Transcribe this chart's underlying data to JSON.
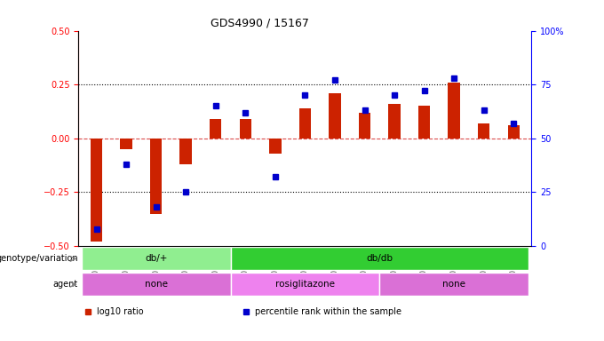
{
  "title": "GDS4990 / 15167",
  "samples": [
    "GSM904674",
    "GSM904675",
    "GSM904676",
    "GSM904677",
    "GSM904678",
    "GSM904684",
    "GSM904685",
    "GSM904686",
    "GSM904687",
    "GSM904688",
    "GSM904679",
    "GSM904680",
    "GSM904681",
    "GSM904682",
    "GSM904683"
  ],
  "log10_ratio": [
    -0.48,
    -0.05,
    -0.35,
    -0.12,
    0.09,
    0.09,
    -0.07,
    0.14,
    0.21,
    0.12,
    0.16,
    0.15,
    0.26,
    0.07,
    0.06
  ],
  "percentile_rank": [
    8,
    38,
    18,
    25,
    65,
    62,
    32,
    70,
    77,
    63,
    70,
    72,
    78,
    63,
    57
  ],
  "genotype_groups": [
    {
      "label": "db/+",
      "start": 0,
      "end": 5,
      "color": "#90EE90"
    },
    {
      "label": "db/db",
      "start": 5,
      "end": 15,
      "color": "#32CD32"
    }
  ],
  "agent_groups": [
    {
      "label": "none",
      "start": 0,
      "end": 5,
      "color": "#DA70D6"
    },
    {
      "label": "rosiglitazone",
      "start": 5,
      "end": 10,
      "color": "#DA70D6"
    },
    {
      "label": "none",
      "start": 10,
      "end": 15,
      "color": "#DA70D6"
    }
  ],
  "ylim_left": [
    -0.5,
    0.5
  ],
  "ylim_right": [
    0,
    100
  ],
  "yticks_left": [
    -0.5,
    -0.25,
    0.0,
    0.25,
    0.5
  ],
  "yticks_right": [
    0,
    25,
    50,
    75,
    100
  ],
  "bar_color": "#CC2200",
  "dot_color": "#0000CC",
  "hline_color": "#CC0000",
  "hline_alpha": 0.5,
  "grid_color": "black",
  "legend_items": [
    {
      "label": "log10 ratio",
      "color": "#CC2200"
    },
    {
      "label": "percentile rank within the sample",
      "color": "#0000CC"
    }
  ]
}
